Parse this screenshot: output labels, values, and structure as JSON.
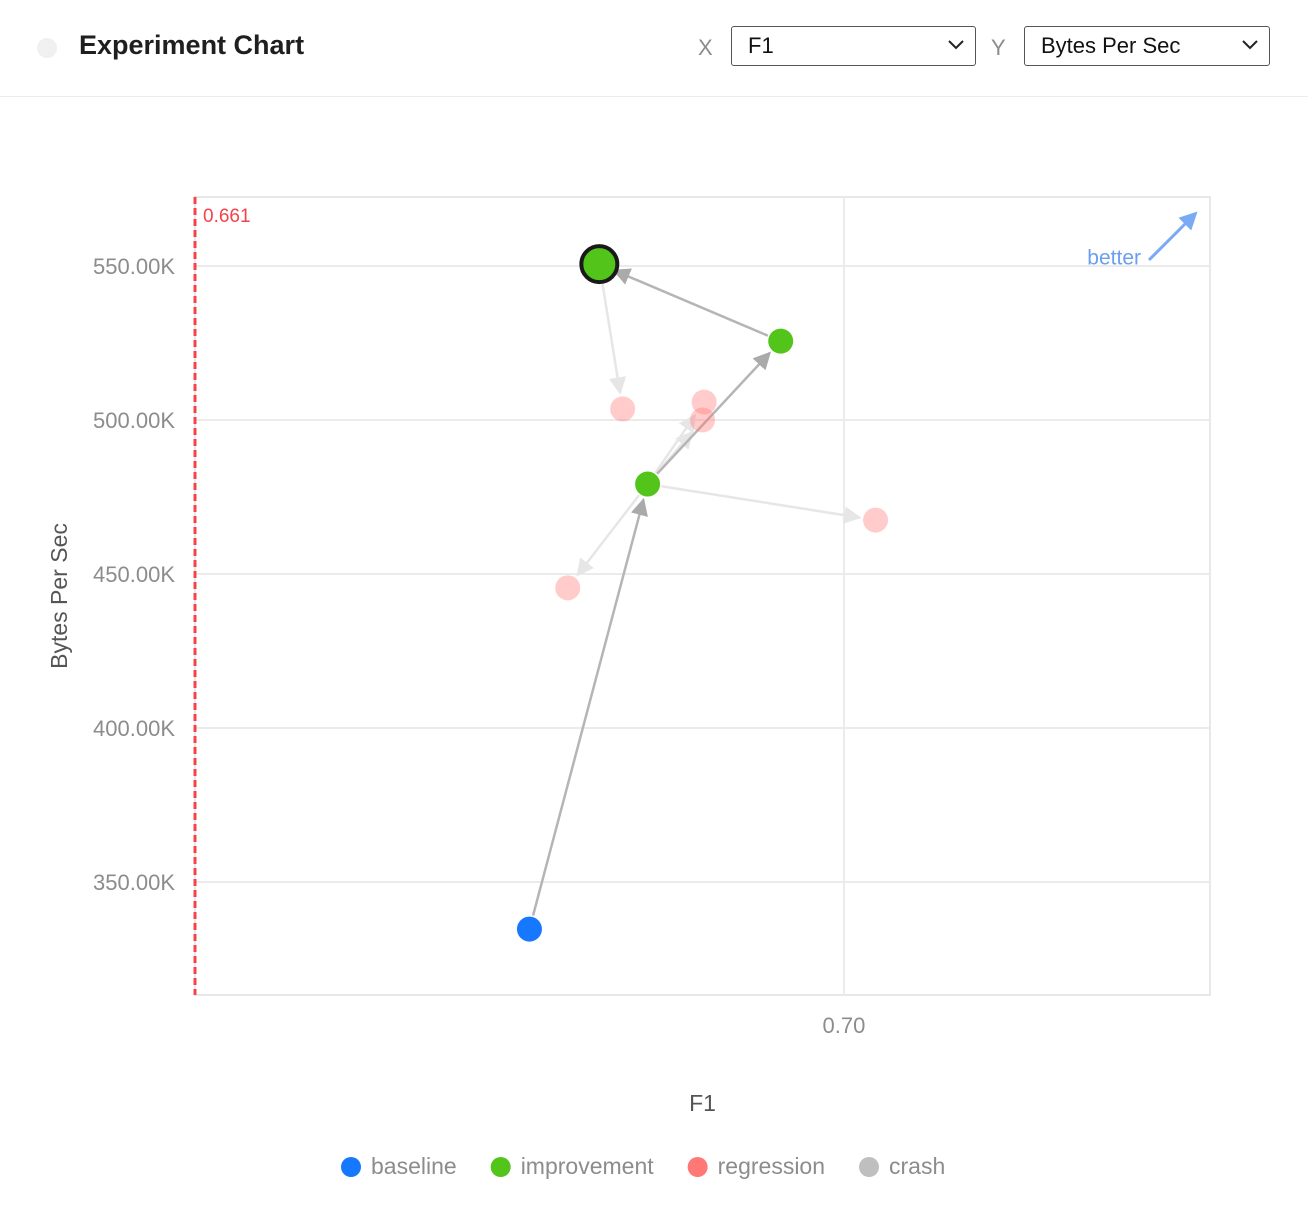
{
  "header": {
    "title": "Experiment Chart",
    "x_label": "X",
    "x_select": "F1",
    "y_label": "Y",
    "y_select": "Bytes Per Sec"
  },
  "chart_data": {
    "type": "scatter",
    "x_label": "F1",
    "y_label": "Bytes Per Sec",
    "xlim": [
      0.661,
      0.722
    ],
    "ylim": [
      313300,
      572400
    ],
    "xticks": [
      {
        "value": 0.7,
        "label": "0.70"
      }
    ],
    "yticks": [
      {
        "value": 350000,
        "label": "350.00K"
      },
      {
        "value": 400000,
        "label": "400.00K"
      },
      {
        "value": 450000,
        "label": "450.00K"
      },
      {
        "value": 500000,
        "label": "500.00K"
      },
      {
        "value": 550000,
        "label": "550.00K"
      }
    ],
    "grid": true,
    "threshold": 0.661,
    "threshold_color": "#f5424b",
    "annotation": "better",
    "series": [
      {
        "name": "baseline",
        "color": "#1677ff",
        "x": [
          0.6811
        ],
        "values": [
          334700
        ]
      },
      {
        "name": "improvement",
        "color": "#52c41a",
        "x": [
          0.6882,
          0.6962,
          0.6853
        ],
        "values": [
          479200,
          525600,
          550600
        ]
      },
      {
        "name": "regression",
        "color": "#ff7875",
        "x": [
          0.6834,
          0.7019,
          0.6915,
          0.6916,
          0.6867
        ],
        "values": [
          445500,
          467500,
          500000,
          505800,
          503600
        ]
      },
      {
        "name": "crash",
        "color": "#bfbfbf",
        "x": [],
        "values": []
      }
    ],
    "highlighted": [
      1,
      2
    ],
    "links": [
      {
        "from": [
          0,
          0
        ],
        "to": [
          1,
          0
        ]
      },
      {
        "from": [
          1,
          0
        ],
        "to": [
          2,
          0
        ]
      },
      {
        "from": [
          1,
          0
        ],
        "to": [
          2,
          1
        ]
      },
      {
        "from": [
          1,
          0
        ],
        "to": [
          2,
          2
        ]
      },
      {
        "from": [
          1,
          0
        ],
        "to": [
          2,
          3
        ]
      },
      {
        "from": [
          1,
          0
        ],
        "to": [
          1,
          1
        ]
      },
      {
        "from": [
          1,
          1
        ],
        "to": [
          1,
          2
        ]
      },
      {
        "from": [
          1,
          2
        ],
        "to": [
          2,
          4
        ]
      }
    ]
  }
}
